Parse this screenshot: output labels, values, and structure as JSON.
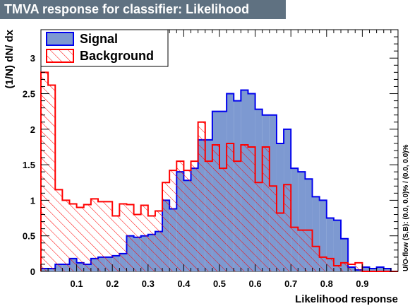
{
  "title": "TMVA response for classifier: Likelihood",
  "colors": {
    "title_bg": "#5f7181",
    "signal_fill": "#7d99d1",
    "signal_line": "#0000ee",
    "background_line": "#ff0000"
  },
  "chart_data": {
    "type": "area",
    "title": "TMVA response for classifier: Likelihood",
    "xlabel": "Likelihood response",
    "ylabel": "(1/N) dN/ dx",
    "xlim": [
      0,
      1
    ],
    "ylim": [
      0,
      3.4
    ],
    "x_ticks": [
      "0.1",
      "0.2",
      "0.3",
      "0.4",
      "0.5",
      "0.6",
      "0.7",
      "0.8",
      "0.9"
    ],
    "y_ticks": [
      "0",
      "0.5",
      "1",
      "1.5",
      "2",
      "2.5",
      "3"
    ],
    "bin_width": 0.02,
    "legend_placement": "top-left",
    "overflow_note": "U/O-flow (S,B): (0.0, 0.0)% / (0.0, 0.0)%",
    "series": [
      {
        "name": "Signal",
        "values": [
          0.04,
          0.04,
          0.1,
          0.1,
          0.18,
          0.12,
          0.1,
          0.18,
          0.2,
          0.2,
          0.22,
          0.25,
          0.5,
          0.48,
          0.5,
          0.52,
          0.56,
          1.0,
          0.88,
          1.4,
          1.28,
          1.45,
          1.85,
          1.85,
          2.25,
          2.25,
          2.5,
          2.4,
          2.55,
          2.5,
          2.28,
          2.2,
          2.2,
          1.8,
          2.0,
          1.45,
          1.4,
          1.3,
          1.05,
          1.0,
          0.75,
          0.72,
          0.46,
          0.06,
          0.02,
          0.06,
          0.04,
          0.06,
          0.04,
          0.0
        ]
      },
      {
        "name": "Background",
        "values": [
          2.8,
          2.62,
          1.15,
          1.0,
          0.95,
          0.9,
          0.94,
          1.02,
          0.98,
          0.98,
          0.78,
          0.95,
          0.94,
          0.8,
          0.93,
          0.78,
          0.85,
          1.25,
          1.42,
          1.55,
          1.42,
          1.55,
          2.1,
          1.55,
          1.78,
          1.45,
          1.8,
          1.55,
          1.78,
          1.75,
          1.25,
          1.75,
          1.2,
          0.82,
          1.22,
          0.62,
          0.58,
          0.58,
          0.35,
          0.2,
          0.18,
          0.08,
          0.12,
          0.1,
          0.12,
          0.0,
          0.0,
          0.0,
          0.0,
          0.0
        ]
      }
    ]
  }
}
